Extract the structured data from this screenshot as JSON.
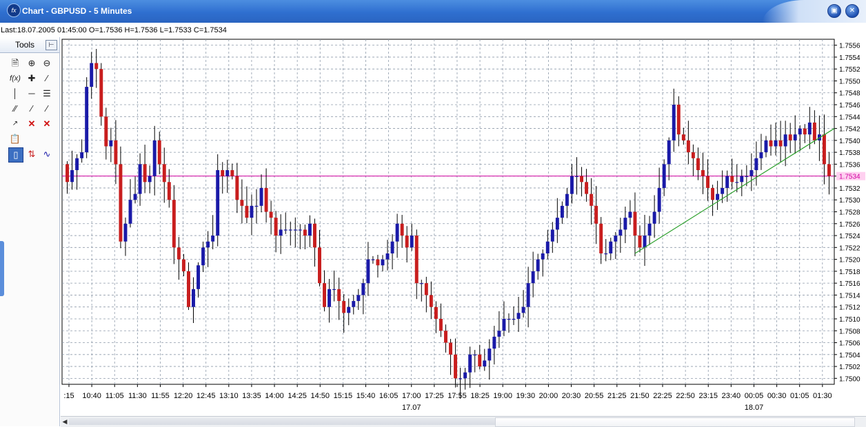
{
  "window": {
    "title": "Chart - GBPUSD - 5 Minutes",
    "app_icon": "fxs-logo-icon",
    "controls": [
      "minimize",
      "close"
    ]
  },
  "status": {
    "text": "Last:18.07.2005 01:45:00 O=1.7536 H=1.7536 L=1.7533 C=1.7534"
  },
  "tools": {
    "title": "Tools",
    "pin_icon": "pin-icon",
    "icons": [
      "new-chart-icon",
      "zoom-in-icon",
      "zoom-out-icon",
      "function-icon",
      "crosshair-icon",
      "line-icon",
      "vertical-line-icon",
      "horizontal-line-icon",
      "grid-line-icon",
      "channel-icon",
      "trend-line-icon",
      "angle-line-icon",
      "label-icon",
      "delete-icon",
      "delete-all-icon",
      "properties-icon",
      "candlestick-icon",
      "bar-chart-icon",
      "line-chart-icon"
    ]
  },
  "colors": {
    "bull": "#1a1aa8",
    "bear": "#c81e1e",
    "wick": "#000000",
    "grid": "#8e9aaa",
    "plot_bg": "#ffffff",
    "last_price_line": "#d000a0",
    "last_price_label_bg": "#ffd0f0",
    "trendline": "#2ca02c",
    "titlebar": "#2f6fd0"
  },
  "chart_data": {
    "type": "candlestick",
    "symbol": "GBPUSD",
    "timeframe": "5 Minutes",
    "ylim": [
      1.7499,
      1.7557
    ],
    "y_ticks": [
      "1.7556",
      "1.7554",
      "1.7552",
      "1.7550",
      "1.7548",
      "1.7546",
      "1.7544",
      "1.7542",
      "1.7540",
      "1.7538",
      "1.7536",
      "1.7534",
      "1.7532",
      "1.7530",
      "1.7528",
      "1.7526",
      "1.7524",
      "1.7522",
      "1.7520",
      "1.7518",
      "1.7516",
      "1.7514",
      "1.7512",
      "1.7510",
      "1.7508",
      "1.7506",
      "1.7504",
      "1.7502",
      "1.7500"
    ],
    "x_ticks": [
      ":15",
      "10:40",
      "11:05",
      "11:30",
      "11:55",
      "12:20",
      "12:45",
      "13:10",
      "13:35",
      "14:00",
      "14:25",
      "14:50",
      "15:15",
      "15:40",
      "16:05",
      "17:00",
      "17:25",
      "17:55",
      "18:25",
      "19:00",
      "19:30",
      "20:00",
      "20:30",
      "20:55",
      "21:25",
      "21:50",
      "22:25",
      "22:50",
      "23:15",
      "23:40",
      "00:05",
      "00:30",
      "01:05",
      "01:30"
    ],
    "date_labels": [
      {
        "label": "17.07",
        "at_tick": 15
      },
      {
        "label": "18.07",
        "at_tick": 30
      }
    ],
    "last_price": "1.7534",
    "closes": [
      1.7533,
      1.7535,
      1.7537,
      1.7538,
      1.7549,
      1.7553,
      1.7552,
      1.7544,
      1.7539,
      1.754,
      1.7536,
      1.7523,
      1.7526,
      1.753,
      1.7531,
      1.7536,
      1.7533,
      1.7534,
      1.754,
      1.7536,
      1.7533,
      1.753,
      1.7522,
      1.752,
      1.7518,
      1.7512,
      1.7515,
      1.7519,
      1.7522,
      1.7523,
      1.7524,
      1.7535,
      1.7534,
      1.7535,
      1.7534,
      1.753,
      1.7529,
      1.7527,
      1.7529,
      1.7529,
      1.7532,
      1.7528,
      1.7527,
      1.7524,
      1.7525,
      1.7525,
      1.7525,
      1.7525,
      1.7525,
      1.7524,
      1.7526,
      1.7522,
      1.7516,
      1.7512,
      1.7515,
      1.7515,
      1.7513,
      1.7511,
      1.7512,
      1.7513,
      1.7514,
      1.7516,
      1.752,
      1.752,
      1.7519,
      1.752,
      1.7521,
      1.7523,
      1.7526,
      1.7524,
      1.7522,
      1.7524,
      1.7516,
      1.7516,
      1.7514,
      1.7512,
      1.751,
      1.7508,
      1.7506,
      1.7504,
      1.75,
      1.75,
      1.7501,
      1.7504,
      1.7504,
      1.7502,
      1.7503,
      1.7505,
      1.7507,
      1.7508,
      1.751,
      1.751,
      1.751,
      1.7511,
      1.7512,
      1.7516,
      1.7518,
      1.752,
      1.7521,
      1.7523,
      1.7525,
      1.7527,
      1.7529,
      1.7531,
      1.7534,
      1.7534,
      1.7533,
      1.7531,
      1.7529,
      1.7526,
      1.7521,
      1.7521,
      1.7523,
      1.7524,
      1.7525,
      1.7527,
      1.7528,
      1.7524,
      1.7522,
      1.7524,
      1.7526,
      1.7528,
      1.7532,
      1.7536,
      1.754,
      1.7546,
      1.7541,
      1.754,
      1.7538,
      1.7537,
      1.7535,
      1.7534,
      1.7532,
      1.753,
      1.7531,
      1.7532,
      1.7534,
      1.7533,
      1.7533,
      1.7534,
      1.7534,
      1.7535,
      1.7537,
      1.7538,
      1.754,
      1.7539,
      1.754,
      1.7539,
      1.7541,
      1.754,
      1.7541,
      1.7542,
      1.7541,
      1.7543,
      1.754,
      1.7541,
      1.7536,
      1.7534
    ]
  }
}
